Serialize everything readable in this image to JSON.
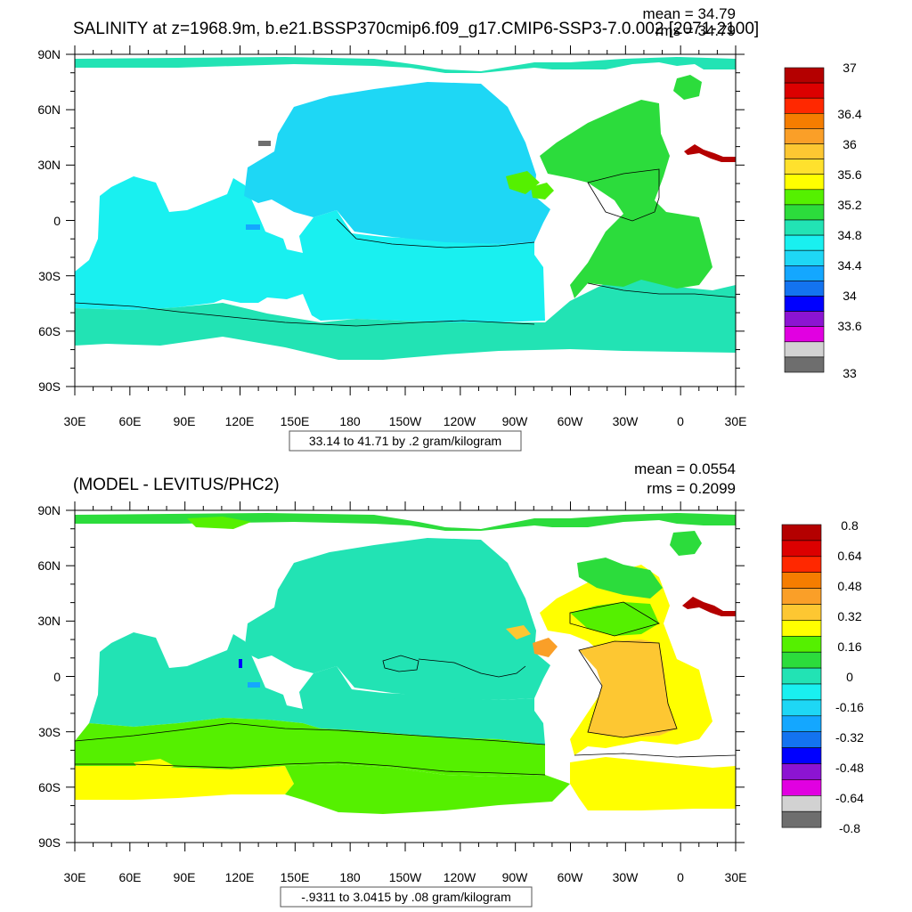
{
  "panels": [
    {
      "title": "SALINITY at z=1968.9m, b.e21.BSSP370cmip6.f09_g17.CMIP6-SSP3-7.0.002 [2071-2100]",
      "mean_text": "mean = 34.79",
      "rms_text": "rms = 34.79",
      "range_text": "33.14 to 41.71 by .2 gram/kilogram",
      "lon_ticks": [
        "30E",
        "60E",
        "90E",
        "120E",
        "150E",
        "180",
        "150W",
        "120W",
        "90W",
        "60W",
        "30W",
        "0",
        "30E"
      ],
      "lat_ticks": [
        "90N",
        "60N",
        "30N",
        "0",
        "30S",
        "60S",
        "90S"
      ],
      "colorbar": {
        "labels": [
          "37",
          "36.4",
          "36",
          "35.6",
          "35.2",
          "34.8",
          "34.4",
          "34",
          "33.6",
          "33"
        ],
        "colors": [
          "#b40000",
          "#dc0000",
          "#ff2800",
          "#f57d00",
          "#fa9f28",
          "#fdc732",
          "#ffe12d",
          "#ffff00",
          "#55f000",
          "#2cdc3c",
          "#22e3b4",
          "#19f0f0",
          "#1ed7f5",
          "#14a7ff",
          "#1373f0",
          "#0000ff",
          "#8c14d2",
          "#e100e1",
          "#d2d2d2",
          "#6e6e6e"
        ]
      }
    },
    {
      "title": "(MODEL - LEVITUS/PHC2)",
      "mean_text": "mean = 0.0554",
      "rms_text": "rms = 0.2099",
      "range_text": "-.9311 to 3.0415 by .08 gram/kilogram",
      "lon_ticks": [
        "30E",
        "60E",
        "90E",
        "120E",
        "150E",
        "180",
        "150W",
        "120W",
        "90W",
        "60W",
        "30W",
        "0",
        "30E"
      ],
      "lat_ticks": [
        "90N",
        "60N",
        "30N",
        "0",
        "30S",
        "60S",
        "90S"
      ],
      "colorbar": {
        "labels": [
          "0.8",
          "0.64",
          "0.48",
          "0.32",
          "0.16",
          "0",
          "-0.16",
          "-0.32",
          "-0.48",
          "-0.64",
          "-0.8"
        ],
        "colors": [
          "#b40000",
          "#dc0000",
          "#ff2800",
          "#f57d00",
          "#fa9f28",
          "#fdc732",
          "#ffff00",
          "#55f000",
          "#2cdc3c",
          "#22e3b4",
          "#19f0f0",
          "#1ed7f5",
          "#14a7ff",
          "#1373f0",
          "#0000ff",
          "#8c14d2",
          "#e100e1",
          "#d2d2d2",
          "#6e6e6e"
        ]
      }
    }
  ]
}
